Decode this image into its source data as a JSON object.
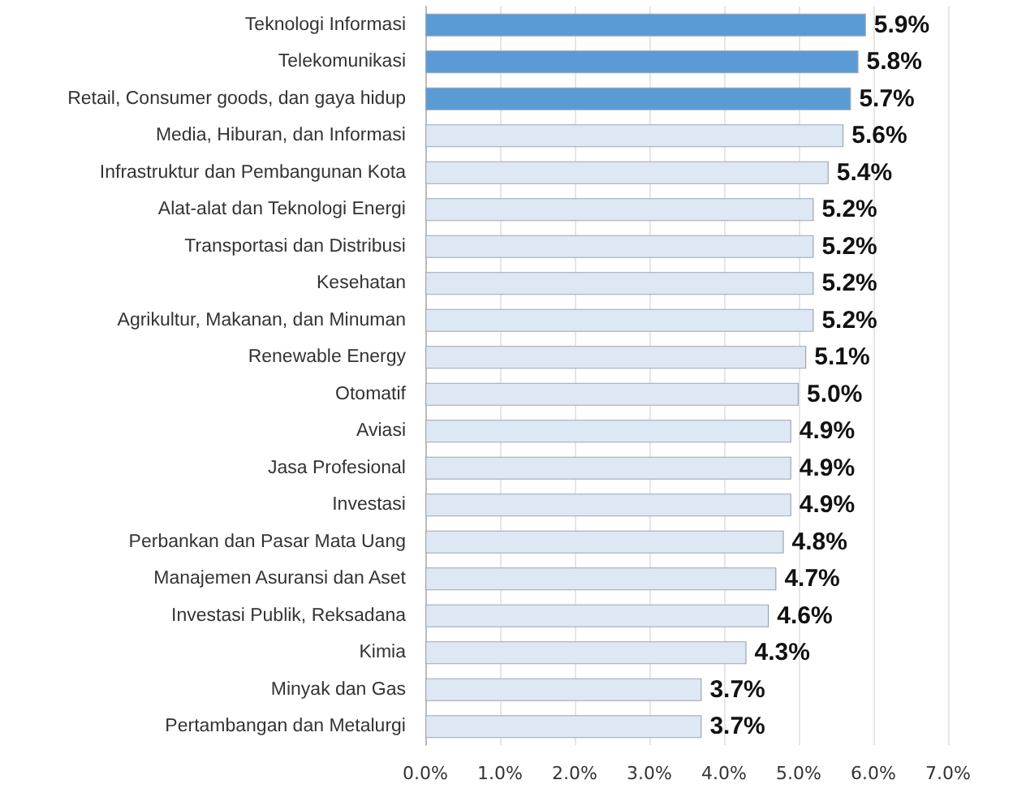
{
  "chart_data": {
    "type": "bar",
    "orientation": "horizontal",
    "categories": [
      "Teknologi Informasi",
      "Telekomunikasi",
      "Retail, Consumer goods, dan gaya hidup",
      "Media, Hiburan, dan Informasi",
      "Infrastruktur dan Pembangunan Kota",
      "Alat-alat dan Teknologi Energi",
      "Transportasi dan Distribusi",
      "Kesehatan",
      "Agrikultur, Makanan, dan Minuman",
      "Renewable Energy",
      "Otomatif",
      "Aviasi",
      "Jasa Profesional",
      "Investasi",
      "Perbankan dan Pasar Mata Uang",
      "Manajemen Asuransi dan Aset",
      "Investasi Publik, Reksadana",
      "Kimia",
      "Minyak dan Gas",
      "Pertambangan dan Metalurgi"
    ],
    "values": [
      5.9,
      5.8,
      5.7,
      5.6,
      5.4,
      5.2,
      5.2,
      5.2,
      5.2,
      5.1,
      5.0,
      4.9,
      4.9,
      4.9,
      4.8,
      4.7,
      4.6,
      4.3,
      3.7,
      3.7
    ],
    "value_labels": [
      "5.9%",
      "5.8%",
      "5.7%",
      "5.6%",
      "5.4%",
      "5.2%",
      "5.2%",
      "5.2%",
      "5.2%",
      "5.1%",
      "5.0%",
      "4.9%",
      "4.9%",
      "4.9%",
      "4.8%",
      "4.7%",
      "4.6%",
      "4.3%",
      "3.7%",
      "3.7%"
    ],
    "colors": [
      "#5b9bd5",
      "#5b9bd5",
      "#5b9bd5",
      "#dde8f4",
      "#dde8f4",
      "#dde8f4",
      "#dde8f4",
      "#dde8f4",
      "#dde8f4",
      "#dde8f4",
      "#dde8f4",
      "#dde8f4",
      "#dde8f4",
      "#dde8f4",
      "#dde8f4",
      "#dde8f4",
      "#dde8f4",
      "#dde8f4",
      "#dde8f4",
      "#dde8f4"
    ],
    "xlim": [
      0,
      7
    ],
    "xticks": [
      {
        "value": 0,
        "label": "0.0%"
      },
      {
        "value": 1,
        "label": "1.0%"
      },
      {
        "value": 2,
        "label": "2.0%"
      },
      {
        "value": 3,
        "label": "3.0%"
      },
      {
        "value": 4,
        "label": "4.0%"
      },
      {
        "value": 5,
        "label": "5.0%"
      },
      {
        "value": 6,
        "label": "6.0%"
      },
      {
        "value": 7,
        "label": "7.0%"
      }
    ],
    "grid": "x"
  }
}
